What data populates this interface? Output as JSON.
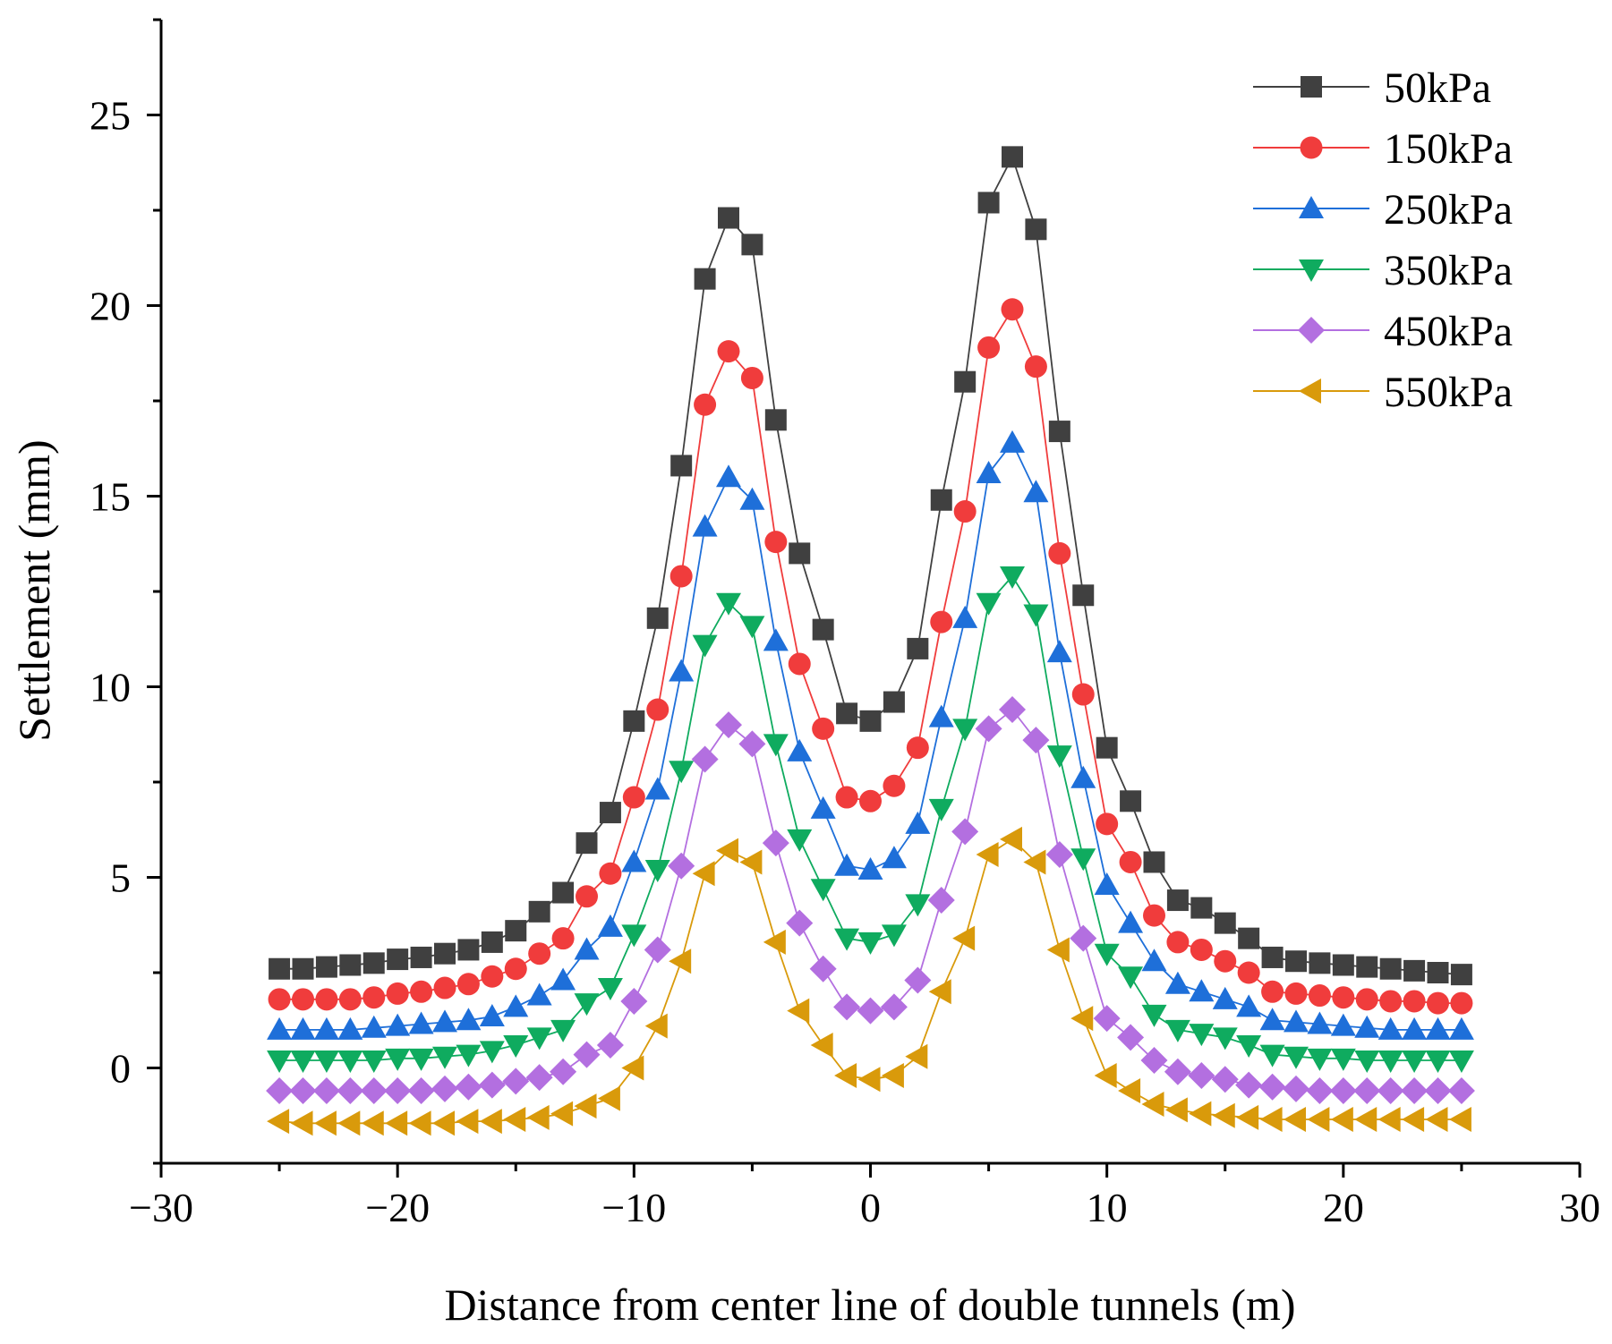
{
  "chart_data": {
    "type": "line",
    "xlabel": "Distance from center line of double tunnels (m)",
    "ylabel": "Settlement (mm)",
    "xlim": [
      -30,
      30
    ],
    "ylim": [
      -2.5,
      27.5
    ],
    "xticks": [
      -30,
      -20,
      -10,
      0,
      10,
      20,
      30
    ],
    "xtick_labels": [
      "−30",
      "−20",
      "−10",
      "0",
      "10",
      "20",
      "30"
    ],
    "yticks": [
      0,
      5,
      10,
      15,
      20,
      25
    ],
    "ytick_labels": [
      "0",
      "5",
      "10",
      "15",
      "20",
      "25"
    ],
    "grid": false,
    "legend_position": "top-right",
    "x": [
      -25,
      -24,
      -23,
      -22,
      -21,
      -20,
      -19,
      -18,
      -17,
      -16,
      -15,
      -14,
      -13,
      -12,
      -11,
      -10,
      -9,
      -8,
      -7,
      -6,
      -5,
      -4,
      -3,
      -2,
      -1,
      0,
      1,
      2,
      3,
      4,
      5,
      6,
      7,
      8,
      9,
      10,
      11,
      12,
      13,
      14,
      15,
      16,
      17,
      18,
      19,
      20,
      21,
      22,
      23,
      24,
      25
    ],
    "series": [
      {
        "name": "50kPa",
        "color": "#404040",
        "marker": "square",
        "values": [
          2.6,
          2.6,
          2.65,
          2.7,
          2.75,
          2.85,
          2.9,
          3.0,
          3.1,
          3.3,
          3.6,
          4.1,
          4.6,
          5.9,
          6.7,
          9.1,
          11.8,
          15.8,
          20.7,
          22.3,
          21.6,
          17.0,
          13.5,
          11.5,
          9.3,
          9.1,
          9.6,
          11.0,
          14.9,
          18.0,
          22.7,
          23.9,
          22.0,
          16.7,
          12.4,
          8.4,
          7.0,
          5.4,
          4.4,
          4.2,
          3.8,
          3.4,
          2.9,
          2.8,
          2.75,
          2.7,
          2.65,
          2.6,
          2.55,
          2.5,
          2.45
        ]
      },
      {
        "name": "150kPa",
        "color": "#f03c3c",
        "marker": "circle",
        "values": [
          1.8,
          1.8,
          1.8,
          1.8,
          1.85,
          1.95,
          2.0,
          2.1,
          2.2,
          2.4,
          2.6,
          3.0,
          3.4,
          4.5,
          5.1,
          7.1,
          9.4,
          12.9,
          17.4,
          18.8,
          18.1,
          13.8,
          10.6,
          8.9,
          7.1,
          7.0,
          7.4,
          8.4,
          11.7,
          14.6,
          18.9,
          19.9,
          18.4,
          13.5,
          9.8,
          6.4,
          5.4,
          4.0,
          3.3,
          3.1,
          2.8,
          2.5,
          2.0,
          1.95,
          1.9,
          1.85,
          1.8,
          1.75,
          1.75,
          1.7,
          1.7
        ]
      },
      {
        "name": "250kPa",
        "color": "#1e6fd9",
        "marker": "triangle-up",
        "values": [
          1.0,
          1.0,
          1.0,
          1.0,
          1.05,
          1.1,
          1.15,
          1.2,
          1.25,
          1.35,
          1.6,
          1.9,
          2.3,
          3.1,
          3.7,
          5.4,
          7.3,
          10.4,
          14.2,
          15.5,
          14.9,
          11.2,
          8.3,
          6.8,
          5.3,
          5.2,
          5.5,
          6.4,
          9.2,
          11.8,
          15.6,
          16.4,
          15.1,
          10.9,
          7.6,
          4.8,
          3.8,
          2.8,
          2.2,
          2.0,
          1.8,
          1.6,
          1.25,
          1.2,
          1.15,
          1.1,
          1.05,
          1.0,
          1.0,
          1.0,
          1.0
        ]
      },
      {
        "name": "350kPa",
        "color": "#0fab5f",
        "marker": "triangle-down",
        "values": [
          0.2,
          0.2,
          0.2,
          0.2,
          0.2,
          0.25,
          0.25,
          0.3,
          0.35,
          0.45,
          0.6,
          0.8,
          1.0,
          1.7,
          2.1,
          3.5,
          5.2,
          7.8,
          11.1,
          12.2,
          11.6,
          8.5,
          6.0,
          4.7,
          3.4,
          3.3,
          3.5,
          4.3,
          6.8,
          8.9,
          12.2,
          12.9,
          11.9,
          8.2,
          5.5,
          3.0,
          2.4,
          1.4,
          1.0,
          0.9,
          0.8,
          0.6,
          0.35,
          0.3,
          0.25,
          0.25,
          0.2,
          0.2,
          0.2,
          0.2,
          0.2
        ]
      },
      {
        "name": "450kPa",
        "color": "#b36fe0",
        "marker": "diamond",
        "values": [
          -0.6,
          -0.6,
          -0.6,
          -0.6,
          -0.6,
          -0.6,
          -0.6,
          -0.55,
          -0.5,
          -0.45,
          -0.35,
          -0.25,
          -0.1,
          0.35,
          0.6,
          1.75,
          3.1,
          5.3,
          8.1,
          9.0,
          8.5,
          5.9,
          3.8,
          2.6,
          1.6,
          1.5,
          1.6,
          2.3,
          4.4,
          6.2,
          8.9,
          9.4,
          8.6,
          5.6,
          3.4,
          1.3,
          0.8,
          0.2,
          -0.1,
          -0.2,
          -0.3,
          -0.45,
          -0.5,
          -0.55,
          -0.6,
          -0.6,
          -0.6,
          -0.6,
          -0.6,
          -0.6,
          -0.6
        ]
      },
      {
        "name": "550kPa",
        "color": "#d99a0b",
        "marker": "triangle-left",
        "values": [
          -1.4,
          -1.45,
          -1.45,
          -1.45,
          -1.45,
          -1.45,
          -1.45,
          -1.45,
          -1.4,
          -1.4,
          -1.35,
          -1.3,
          -1.2,
          -1.0,
          -0.8,
          0.0,
          1.1,
          2.8,
          5.1,
          5.7,
          5.4,
          3.3,
          1.5,
          0.6,
          -0.2,
          -0.3,
          -0.2,
          0.3,
          2.0,
          3.4,
          5.6,
          6.0,
          5.4,
          3.1,
          1.3,
          -0.2,
          -0.6,
          -0.95,
          -1.1,
          -1.2,
          -1.25,
          -1.3,
          -1.35,
          -1.35,
          -1.35,
          -1.35,
          -1.35,
          -1.35,
          -1.35,
          -1.35,
          -1.35
        ]
      }
    ]
  }
}
